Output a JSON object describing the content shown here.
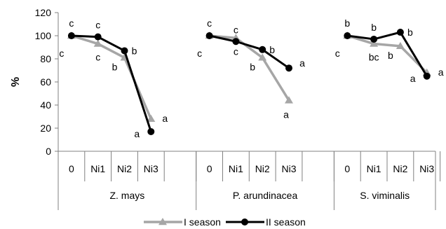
{
  "chart_data": {
    "type": "line",
    "ylabel": "%",
    "ylim": [
      0,
      120
    ],
    "yticks": [
      0,
      20,
      40,
      60,
      80,
      100,
      120
    ],
    "grid": false,
    "legend_position": "bottom",
    "groups": [
      {
        "label": "Z. mays",
        "categories": [
          "0",
          "Ni1",
          "Ni2",
          "Ni3"
        ],
        "series": [
          {
            "name": "I season",
            "values": [
              100,
              93,
              81,
              28
            ],
            "letters": [
              "c",
              "c",
              "b",
              "a"
            ]
          },
          {
            "name": "II season",
            "values": [
              100,
              99,
              87,
              17
            ],
            "letters": [
              "c",
              "c",
              "b",
              "a"
            ]
          }
        ]
      },
      {
        "label": "P. arundinacea",
        "categories": [
          "0",
          "Ni1",
          "Ni2",
          "Ni3"
        ],
        "series": [
          {
            "name": "I season",
            "values": [
              100,
              98,
              81,
              44
            ],
            "letters": [
              "c",
              "c",
              "b",
              "a"
            ]
          },
          {
            "name": "II season",
            "values": [
              100,
              95,
              88,
              72
            ],
            "letters": [
              "c",
              "c",
              "b",
              "a"
            ]
          }
        ]
      },
      {
        "label": "S. viminalis",
        "categories": [
          "0",
          "Ni1",
          "Ni2",
          "Ni3"
        ],
        "series": [
          {
            "name": "I season",
            "values": [
              100,
              93,
              91,
              68
            ],
            "letters": [
              "c",
              "bc",
              "b",
              "a"
            ]
          },
          {
            "name": "II season",
            "values": [
              100,
              97,
              103,
              65
            ],
            "letters": [
              "b",
              "b",
              "b",
              "a"
            ]
          }
        ]
      }
    ],
    "series_styles": [
      {
        "name": "I season",
        "color": "#a6a6a6",
        "marker": "triangle"
      },
      {
        "name": "II season",
        "color": "#000000",
        "marker": "circle"
      }
    ]
  }
}
